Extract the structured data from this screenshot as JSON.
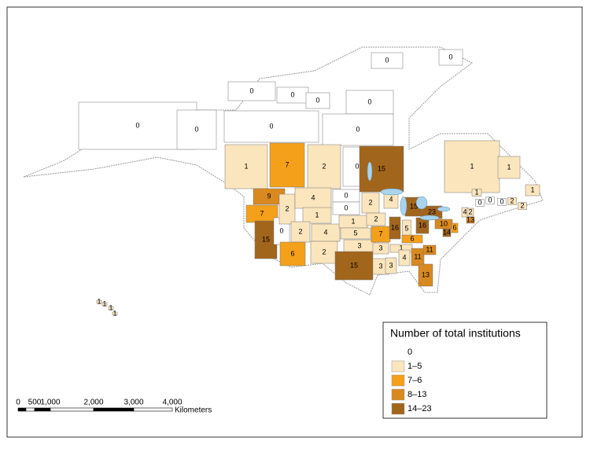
{
  "map": {
    "regions": [
      {
        "value": 0,
        "color": "#ffffff"
      },
      {
        "value": 0,
        "color": "#ffffff"
      },
      {
        "value": 0,
        "color": "#ffffff"
      },
      {
        "value": 0,
        "color": "#ffffff"
      },
      {
        "value": 0,
        "color": "#ffffff"
      },
      {
        "value": 0,
        "color": "#ffffff"
      },
      {
        "value": 0,
        "color": "#ffffff"
      },
      {
        "value": 0,
        "color": "#ffffff"
      },
      {
        "value": 0,
        "color": "#ffffff"
      },
      {
        "value": 0,
        "color": "#ffffff"
      },
      {
        "value": 0,
        "color": "#ffffff"
      },
      {
        "value": 1,
        "color": "#fbe5bd"
      },
      {
        "value": 7,
        "color": "#f5a01a"
      },
      {
        "value": 2,
        "color": "#fbe5bd"
      },
      {
        "value": 15,
        "color": "#a2651c"
      },
      {
        "value": 1,
        "color": "#fbe5bd"
      },
      {
        "value": 1,
        "color": "#fbe5bd"
      },
      {
        "value": 1,
        "color": "#fbe5bd"
      },
      {
        "value": 1,
        "color": "#fbe5bd"
      },
      {
        "value": 0,
        "color": "#ffffff"
      },
      {
        "value": 0,
        "color": "#ffffff"
      },
      {
        "value": 0,
        "color": "#ffffff"
      },
      {
        "value": 2,
        "color": "#fbe5bd"
      },
      {
        "value": 2,
        "color": "#fbe5bd"
      },
      {
        "value": 9,
        "color": "#d9891f"
      },
      {
        "value": 7,
        "color": "#f5a01a"
      },
      {
        "value": 15,
        "color": "#a2651c"
      },
      {
        "value": 0,
        "color": "#ffffff"
      },
      {
        "value": 2,
        "color": "#fbe5bd"
      },
      {
        "value": 4,
        "color": "#fbe5bd"
      },
      {
        "value": 1,
        "color": "#fbe5bd"
      },
      {
        "value": 2,
        "color": "#fbe5bd"
      },
      {
        "value": 4,
        "color": "#fbe5bd"
      },
      {
        "value": 6,
        "color": "#f5a01a"
      },
      {
        "value": 2,
        "color": "#fbe5bd"
      },
      {
        "value": 0,
        "color": "#ffffff"
      },
      {
        "value": 0,
        "color": "#ffffff"
      },
      {
        "value": 1,
        "color": "#fbe5bd"
      },
      {
        "value": 5,
        "color": "#fbe5bd"
      },
      {
        "value": 3,
        "color": "#fbe5bd"
      },
      {
        "value": 15,
        "color": "#a2651c"
      },
      {
        "value": 2,
        "color": "#fbe5bd"
      },
      {
        "value": 2,
        "color": "#fbe5bd"
      },
      {
        "value": 7,
        "color": "#f5a01a"
      },
      {
        "value": 3,
        "color": "#fbe5bd"
      },
      {
        "value": 3,
        "color": "#fbe5bd"
      },
      {
        "value": 4,
        "color": "#fbe5bd"
      },
      {
        "value": 16,
        "color": "#a2651c"
      },
      {
        "value": 15,
        "color": "#a2651c"
      },
      {
        "value": 5,
        "color": "#fbe5bd"
      },
      {
        "value": 16,
        "color": "#a2651c"
      },
      {
        "value": 6,
        "color": "#f5a01a"
      },
      {
        "value": 1,
        "color": "#fbe5bd"
      },
      {
        "value": 4,
        "color": "#fbe5bd"
      },
      {
        "value": 3,
        "color": "#fbe5bd"
      },
      {
        "value": 11,
        "color": "#d9891f"
      },
      {
        "value": 11,
        "color": "#d9891f"
      },
      {
        "value": 13,
        "color": "#d9891f"
      },
      {
        "value": 10,
        "color": "#d9891f"
      },
      {
        "value": 14,
        "color": "#a2651c"
      },
      {
        "value": 23,
        "color": "#a2651c"
      },
      {
        "value": 6,
        "color": "#f5a01a"
      },
      {
        "value": 4,
        "color": "#fbe5bd"
      },
      {
        "value": 2,
        "color": "#fbe5bd"
      },
      {
        "value": 13,
        "color": "#d9891f"
      },
      {
        "value": 1,
        "color": "#fbe5bd"
      },
      {
        "value": 1,
        "color": "#fbe5bd"
      },
      {
        "value": 1,
        "color": "#fbe5bd"
      },
      {
        "value": 1,
        "color": "#fbe5bd"
      }
    ],
    "legend": {
      "title": "Number of total institutions",
      "items": [
        {
          "label": "0",
          "color": "#ffffff"
        },
        {
          "label": "1–5",
          "color": "#fbe5bd"
        },
        {
          "label": "7–6",
          "color": "#f5a01a"
        },
        {
          "label": "8–13",
          "color": "#d9891f"
        },
        {
          "label": "14–23",
          "color": "#a2651c"
        }
      ]
    },
    "scale": {
      "labels": [
        "0",
        "500",
        "1,000",
        "2,000",
        "3,000",
        "4,000"
      ],
      "unit": "Kilometers"
    }
  }
}
